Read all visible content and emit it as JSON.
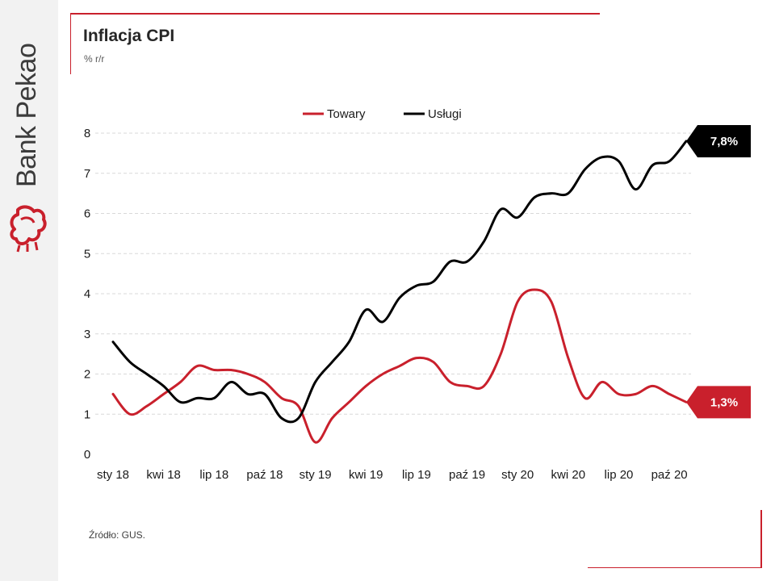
{
  "brand": {
    "name": "Bank Pekao",
    "logo_icon": "pekao-bison-icon",
    "accent_color": "#c9202c"
  },
  "chart_data": {
    "type": "line",
    "title": "Inflacja CPI",
    "subtitle": "% r/r",
    "source": "Źródło: GUS.",
    "ylim": [
      0,
      8
    ],
    "y_ticks": [
      0,
      1,
      2,
      3,
      4,
      5,
      6,
      7,
      8
    ],
    "x": [
      "2018-01",
      "2018-02",
      "2018-03",
      "2018-04",
      "2018-05",
      "2018-06",
      "2018-07",
      "2018-08",
      "2018-09",
      "2018-10",
      "2018-11",
      "2018-12",
      "2019-01",
      "2019-02",
      "2019-03",
      "2019-04",
      "2019-05",
      "2019-06",
      "2019-07",
      "2019-08",
      "2019-09",
      "2019-10",
      "2019-11",
      "2019-12",
      "2020-01",
      "2020-02",
      "2020-03",
      "2020-04",
      "2020-05",
      "2020-06",
      "2020-07",
      "2020-08",
      "2020-09",
      "2020-10",
      "2020-11"
    ],
    "x_tick_labels": [
      "sty 18",
      "kwi 18",
      "lip 18",
      "paź 18",
      "sty 19",
      "kwi 19",
      "lip 19",
      "paź 19",
      "sty 20",
      "kwi 20",
      "lip 20",
      "paź 20"
    ],
    "grid": true,
    "legend_position": "top",
    "series": [
      {
        "name": "Towary",
        "color": "#c9202c",
        "end_label": "1,3%",
        "values": [
          1.5,
          1.0,
          1.2,
          1.5,
          1.8,
          2.2,
          2.1,
          2.1,
          2.0,
          1.8,
          1.4,
          1.2,
          0.3,
          0.9,
          1.3,
          1.7,
          2.0,
          2.2,
          2.4,
          2.3,
          1.8,
          1.7,
          1.7,
          2.5,
          3.8,
          4.1,
          3.8,
          2.4,
          1.4,
          1.8,
          1.5,
          1.5,
          1.7,
          1.5,
          1.3
        ]
      },
      {
        "name": "Usługi",
        "color": "#000000",
        "end_label": "7,8%",
        "values": [
          2.8,
          2.3,
          2.0,
          1.7,
          1.3,
          1.4,
          1.4,
          1.8,
          1.5,
          1.5,
          0.9,
          0.9,
          1.8,
          2.3,
          2.8,
          3.6,
          3.3,
          3.9,
          4.2,
          4.3,
          4.8,
          4.8,
          5.3,
          6.1,
          5.9,
          6.4,
          6.5,
          6.5,
          7.1,
          7.4,
          7.3,
          6.6,
          7.2,
          7.3,
          7.8
        ]
      }
    ]
  }
}
